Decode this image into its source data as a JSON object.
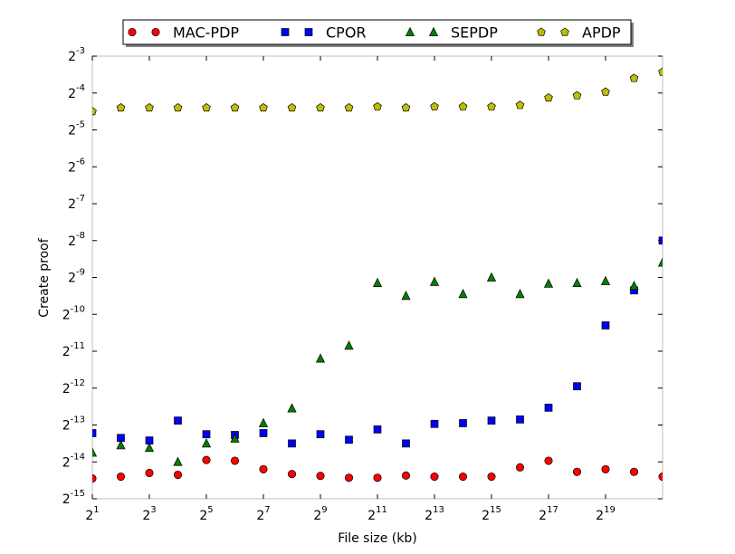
{
  "chart_data": {
    "type": "scatter",
    "title": "",
    "xlabel": "File size (kb)",
    "ylabel": "Create proof",
    "x_scale": "log2",
    "y_scale": "log2",
    "xlim_exp": [
      1,
      21
    ],
    "ylim_exp": [
      -15,
      -3
    ],
    "x_ticks_exp": [
      1,
      3,
      5,
      7,
      9,
      11,
      13,
      15,
      17,
      19
    ],
    "y_ticks_exp": [
      -15,
      -14,
      -13,
      -12,
      -11,
      -10,
      -9,
      -8,
      -7,
      -6,
      -5,
      -4,
      -3
    ],
    "tick_base": "2",
    "grid": false,
    "legend_position": "top-center",
    "x_exp": [
      1,
      2,
      3,
      4,
      5,
      6,
      7,
      8,
      9,
      10,
      11,
      12,
      13,
      14,
      15,
      16,
      17,
      18,
      19,
      20,
      21
    ],
    "series": [
      {
        "name": "MAC-PDP",
        "marker": "circle",
        "color": "#ff0000",
        "y_exp": [
          -14.45,
          -14.4,
          -14.3,
          -14.35,
          -13.95,
          -13.97,
          -14.2,
          -14.33,
          -14.38,
          -14.43,
          -14.43,
          -14.37,
          -14.4,
          -14.4,
          -14.4,
          -14.15,
          -13.97,
          -14.27,
          -14.2,
          -14.27,
          -14.4
        ]
      },
      {
        "name": "CPOR",
        "marker": "square",
        "color": "#0000ff",
        "y_exp": [
          -13.22,
          -13.35,
          -13.42,
          -12.88,
          -13.25,
          -13.27,
          -13.22,
          -13.5,
          -13.25,
          -13.4,
          -13.12,
          -13.5,
          -12.97,
          -12.95,
          -12.88,
          -12.85,
          -12.53,
          -11.95,
          -10.3,
          -9.35,
          -8.0
        ]
      },
      {
        "name": "SEPDP",
        "marker": "triangle",
        "color": "#008000",
        "y_exp": [
          -13.75,
          -13.55,
          -13.62,
          -14.0,
          -13.5,
          -13.37,
          -12.95,
          -12.55,
          -11.2,
          -10.85,
          -9.15,
          -9.5,
          -9.12,
          -9.45,
          -9.0,
          -9.45,
          -9.17,
          -9.15,
          -9.1,
          -9.23,
          -8.6
        ]
      },
      {
        "name": "APDP",
        "marker": "pentagon",
        "color": "#bfbf00",
        "y_exp": [
          -4.5,
          -4.4,
          -4.4,
          -4.4,
          -4.4,
          -4.4,
          -4.4,
          -4.4,
          -4.4,
          -4.4,
          -4.37,
          -4.4,
          -4.37,
          -4.37,
          -4.37,
          -4.33,
          -4.13,
          -4.07,
          -3.97,
          -3.6,
          -3.43
        ]
      }
    ]
  }
}
